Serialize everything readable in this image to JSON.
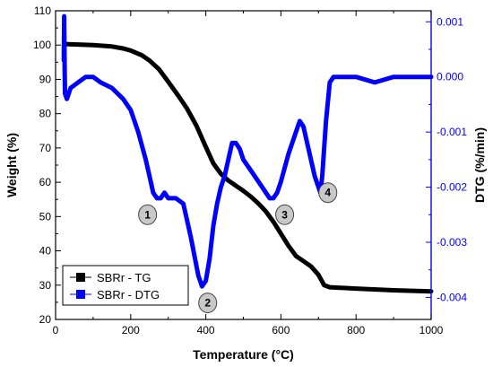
{
  "chart_data": {
    "type": "line",
    "x_axis": {
      "label": "Temperature (°C)",
      "range": [
        0,
        1000
      ],
      "ticks": [
        0,
        200,
        400,
        600,
        800,
        1000
      ]
    },
    "y_left": {
      "label": "Weight (%)",
      "range": [
        20,
        110
      ],
      "ticks": [
        20,
        30,
        40,
        50,
        60,
        70,
        80,
        90,
        100,
        110
      ],
      "color": "#000000"
    },
    "y_right": {
      "label": "DTG (%/min)",
      "range": [
        -0.0044,
        0.0012
      ],
      "ticks": [
        {
          "value": 0.001,
          "label": "0.001"
        },
        {
          "value": 0.0,
          "label": "0.000"
        },
        {
          "value": -0.001,
          "label": "-0.001"
        },
        {
          "value": -0.002,
          "label": "-0.002"
        },
        {
          "value": -0.003,
          "label": "-0.003"
        },
        {
          "value": -0.004,
          "label": "-0.004"
        }
      ],
      "color": "#0000ff"
    },
    "series": [
      {
        "name": "SBRr - TG",
        "axis": "left",
        "color": "#000000",
        "points": [
          [
            25,
            100.3
          ],
          [
            50,
            100.2
          ],
          [
            100,
            100
          ],
          [
            150,
            99.6
          ],
          [
            180,
            99
          ],
          [
            200,
            98.4
          ],
          [
            230,
            97
          ],
          [
            250,
            95.5
          ],
          [
            275,
            93
          ],
          [
            300,
            89.3
          ],
          [
            325,
            85.5
          ],
          [
            350,
            81.5
          ],
          [
            375,
            76.5
          ],
          [
            400,
            70.3
          ],
          [
            420,
            65.5
          ],
          [
            440,
            62.5
          ],
          [
            460,
            60.5
          ],
          [
            480,
            59
          ],
          [
            500,
            57.5
          ],
          [
            520,
            55.8
          ],
          [
            540,
            53.8
          ],
          [
            560,
            51.5
          ],
          [
            580,
            48.5
          ],
          [
            600,
            45
          ],
          [
            620,
            41.5
          ],
          [
            640,
            38.5
          ],
          [
            660,
            37
          ],
          [
            680,
            35.5
          ],
          [
            700,
            33
          ],
          [
            715,
            30
          ],
          [
            730,
            29.4
          ],
          [
            800,
            29
          ],
          [
            900,
            28.5
          ],
          [
            1000,
            28.2
          ]
        ]
      },
      {
        "name": "SBRr - DTG",
        "axis": "right",
        "color": "#0000ff",
        "points": [
          [
            22,
            0.0003
          ],
          [
            23,
            0.0011
          ],
          [
            24,
            0.0002
          ],
          [
            25,
            -0.0003
          ],
          [
            30,
            -0.0004
          ],
          [
            40,
            -0.0002
          ],
          [
            60,
            -0.0001
          ],
          [
            80,
            0
          ],
          [
            100,
            0
          ],
          [
            120,
            -0.0001
          ],
          [
            150,
            -0.0002
          ],
          [
            180,
            -0.0004
          ],
          [
            200,
            -0.0006
          ],
          [
            220,
            -0.001
          ],
          [
            240,
            -0.0015
          ],
          [
            250,
            -0.0018
          ],
          [
            260,
            -0.0021
          ],
          [
            270,
            -0.0022
          ],
          [
            280,
            -0.0022
          ],
          [
            290,
            -0.0021
          ],
          [
            300,
            -0.0022
          ],
          [
            320,
            -0.0022
          ],
          [
            340,
            -0.0023
          ],
          [
            360,
            -0.0029
          ],
          [
            380,
            -0.0036
          ],
          [
            390,
            -0.0038
          ],
          [
            400,
            -0.0037
          ],
          [
            410,
            -0.0033
          ],
          [
            420,
            -0.0027
          ],
          [
            430,
            -0.0023
          ],
          [
            440,
            -0.002
          ],
          [
            450,
            -0.0018
          ],
          [
            460,
            -0.0015
          ],
          [
            470,
            -0.0012
          ],
          [
            480,
            -0.0012
          ],
          [
            490,
            -0.0013
          ],
          [
            500,
            -0.0015
          ],
          [
            520,
            -0.0017
          ],
          [
            540,
            -0.0019
          ],
          [
            560,
            -0.0021
          ],
          [
            570,
            -0.0022
          ],
          [
            580,
            -0.0022
          ],
          [
            590,
            -0.0021
          ],
          [
            600,
            -0.0019
          ],
          [
            620,
            -0.0014
          ],
          [
            640,
            -0.001
          ],
          [
            650,
            -0.0008
          ],
          [
            660,
            -0.0009
          ],
          [
            670,
            -0.0012
          ],
          [
            680,
            -0.0015
          ],
          [
            690,
            -0.0018
          ],
          [
            700,
            -0.002
          ],
          [
            705,
            -0.0021
          ],
          [
            710,
            -0.0018
          ],
          [
            720,
            -0.0008
          ],
          [
            730,
            -0.0001
          ],
          [
            740,
            0
          ],
          [
            760,
            0
          ],
          [
            800,
            0
          ],
          [
            850,
            -0.0001
          ],
          [
            900,
            0
          ],
          [
            950,
            0
          ],
          [
            1000,
            0
          ]
        ]
      }
    ],
    "legend": {
      "position": "bottom-left",
      "entries": [
        "SBRr - TG",
        "SBRr - DTG"
      ]
    },
    "annotations": [
      {
        "label": "1",
        "x": 245,
        "y_right": -0.0025
      },
      {
        "label": "2",
        "x": 405,
        "y_right": -0.0041
      },
      {
        "label": "3",
        "x": 610,
        "y_right": -0.0025
      },
      {
        "label": "4",
        "x": 725,
        "y_right": -0.0021
      }
    ],
    "grid": false
  }
}
